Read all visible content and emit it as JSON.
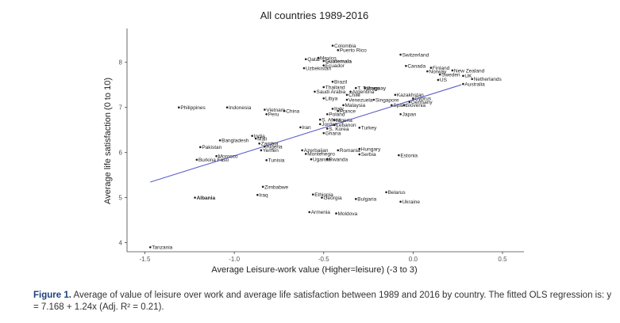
{
  "chart_data": {
    "type": "scatter",
    "title": "All countries 1989-2016",
    "xlabel": "Average Leisure-work value (Higher=leisure) (-3 to 3)",
    "ylabel": "Average life satisfaction (0 to 10)",
    "xlim": [
      -1.6,
      0.62
    ],
    "ylim": [
      3.8,
      8.75
    ],
    "xticks": [
      -1.5,
      -1.0,
      -0.5,
      0.0,
      0.5
    ],
    "xtick_labels": [
      "-1.5",
      "-1.0",
      "-0.5",
      "0.0",
      "0.5"
    ],
    "yticks": [
      4,
      5,
      6,
      7,
      8
    ],
    "ytick_labels": [
      "4",
      "5",
      "6",
      "7",
      "8"
    ],
    "grid": false,
    "legend": "none",
    "fit_line": {
      "x": [
        -1.47,
        0.27
      ],
      "intercept": 7.168,
      "slope": 1.24,
      "color": "#5b5fc7"
    },
    "point_color": "#222222",
    "points": [
      {
        "label": "Colombia",
        "x": -0.45,
        "y": 8.37
      },
      {
        "label": "Puerto Rico",
        "x": -0.42,
        "y": 8.27
      },
      {
        "label": "Switzerland",
        "x": -0.07,
        "y": 8.17
      },
      {
        "label": "Qatar",
        "x": -0.6,
        "y": 8.07
      },
      {
        "label": "Mexico",
        "x": -0.53,
        "y": 8.1
      },
      {
        "label": "Guatemala",
        "x": -0.5,
        "y": 8.03,
        "bold": true
      },
      {
        "label": "Ecuador",
        "x": -0.5,
        "y": 7.93
      },
      {
        "label": "Uzbekistan",
        "x": -0.61,
        "y": 7.87
      },
      {
        "label": "Canada",
        "x": -0.04,
        "y": 7.92
      },
      {
        "label": "Finland",
        "x": 0.1,
        "y": 7.88
      },
      {
        "label": "Norway",
        "x": 0.08,
        "y": 7.8
      },
      {
        "label": "New Zealand",
        "x": 0.22,
        "y": 7.82
      },
      {
        "label": "Sweden",
        "x": 0.15,
        "y": 7.73
      },
      {
        "label": "UK",
        "x": 0.28,
        "y": 7.7
      },
      {
        "label": "Netherlands",
        "x": 0.33,
        "y": 7.63
      },
      {
        "label": "US",
        "x": 0.14,
        "y": 7.61
      },
      {
        "label": "Australia",
        "x": 0.28,
        "y": 7.52
      },
      {
        "label": "Brazil",
        "x": -0.45,
        "y": 7.57
      },
      {
        "label": "Saudi Arabia",
        "x": -0.55,
        "y": 7.35
      },
      {
        "label": "Thailand",
        "x": -0.5,
        "y": 7.45
      },
      {
        "label": "T. Tobago",
        "x": -0.32,
        "y": 7.43
      },
      {
        "label": "Uruguay",
        "x": -0.27,
        "y": 7.43
      },
      {
        "label": "Argentina",
        "x": -0.35,
        "y": 7.35
      },
      {
        "label": "Chile",
        "x": -0.37,
        "y": 7.28
      },
      {
        "label": "Kazakhstan",
        "x": -0.1,
        "y": 7.28
      },
      {
        "label": "Libya",
        "x": -0.5,
        "y": 7.2
      },
      {
        "label": "Venezuela",
        "x": -0.37,
        "y": 7.17
      },
      {
        "label": "Singapore",
        "x": -0.22,
        "y": 7.17
      },
      {
        "label": "Cyprus",
        "x": 0.0,
        "y": 7.2
      },
      {
        "label": "Germany",
        "x": -0.02,
        "y": 7.12
      },
      {
        "label": "Malaysia",
        "x": -0.39,
        "y": 7.05
      },
      {
        "label": "Spain",
        "x": -0.12,
        "y": 7.05
      },
      {
        "label": "Slovenia",
        "x": -0.05,
        "y": 7.05
      },
      {
        "label": "Philippines",
        "x": -1.31,
        "y": 7.0
      },
      {
        "label": "Indonesia",
        "x": -1.04,
        "y": 7.0
      },
      {
        "label": "Vietnam",
        "x": -0.83,
        "y": 6.95
      },
      {
        "label": "China",
        "x": -0.72,
        "y": 6.92
      },
      {
        "label": "Italy",
        "x": -0.45,
        "y": 6.97
      },
      {
        "label": "France",
        "x": -0.42,
        "y": 6.92
      },
      {
        "label": "Peru",
        "x": -0.82,
        "y": 6.85
      },
      {
        "label": "Poland",
        "x": -0.48,
        "y": 6.85
      },
      {
        "label": "Japan",
        "x": -0.07,
        "y": 6.85
      },
      {
        "label": "S. Africa",
        "x": -0.52,
        "y": 6.73
      },
      {
        "label": "Nigeria",
        "x": -0.44,
        "y": 6.72
      },
      {
        "label": "Jordan",
        "x": -0.52,
        "y": 6.63
      },
      {
        "label": "Lebanon",
        "x": -0.44,
        "y": 6.61
      },
      {
        "label": "Iran",
        "x": -0.63,
        "y": 6.56
      },
      {
        "label": "S. Korea",
        "x": -0.48,
        "y": 6.53
      },
      {
        "label": "Turkey",
        "x": -0.3,
        "y": 6.55
      },
      {
        "label": "Ghana",
        "x": -0.5,
        "y": 6.43
      },
      {
        "label": "India",
        "x": -0.9,
        "y": 6.37
      },
      {
        "label": "Mali",
        "x": -0.88,
        "y": 6.31
      },
      {
        "label": "Bangladesh",
        "x": -1.08,
        "y": 6.27
      },
      {
        "label": "Zambia",
        "x": -0.86,
        "y": 6.2
      },
      {
        "label": "Pakistan",
        "x": -1.19,
        "y": 6.12
      },
      {
        "label": "Algeria",
        "x": -0.83,
        "y": 6.13
      },
      {
        "label": "Yemen",
        "x": -0.85,
        "y": 6.05
      },
      {
        "label": "Azerbaijan",
        "x": -0.62,
        "y": 6.05
      },
      {
        "label": "Romania",
        "x": -0.42,
        "y": 6.05
      },
      {
        "label": "Hungary",
        "x": -0.3,
        "y": 6.08
      },
      {
        "label": "Montenegro",
        "x": -0.6,
        "y": 5.97
      },
      {
        "label": "Serbia",
        "x": -0.3,
        "y": 5.96
      },
      {
        "label": "Morocco",
        "x": -1.1,
        "y": 5.92
      },
      {
        "label": "Estonia",
        "x": -0.08,
        "y": 5.94
      },
      {
        "label": "Burkina Faso",
        "x": -1.21,
        "y": 5.84
      },
      {
        "label": "Tunisia",
        "x": -0.82,
        "y": 5.83
      },
      {
        "label": "Uganda",
        "x": -0.57,
        "y": 5.85
      },
      {
        "label": "Rwanda",
        "x": -0.48,
        "y": 5.85
      },
      {
        "label": "Zimbabwe",
        "x": -0.84,
        "y": 5.24
      },
      {
        "label": "Belarus",
        "x": -0.15,
        "y": 5.12
      },
      {
        "label": "Iraq",
        "x": -0.87,
        "y": 5.06
      },
      {
        "label": "Ethiopia",
        "x": -0.56,
        "y": 5.07
      },
      {
        "label": "Georgia",
        "x": -0.51,
        "y": 5.0
      },
      {
        "label": "Bulgaria",
        "x": -0.32,
        "y": 4.97
      },
      {
        "label": "Albania",
        "x": -1.22,
        "y": 5.0,
        "bold": true
      },
      {
        "label": "Ukraine",
        "x": -0.07,
        "y": 4.91
      },
      {
        "label": "Armenia",
        "x": -0.58,
        "y": 4.68
      },
      {
        "label": "Moldova",
        "x": -0.43,
        "y": 4.65
      },
      {
        "label": "Tanzania",
        "x": -1.47,
        "y": 3.9
      }
    ]
  },
  "caption": {
    "figure_label": "Figure 1.",
    "text": "Average of value of leisure over work and average life satisfaction between 1989 and 2016 by country. The fitted OLS regression is: y = 7.168 + 1.24x (Adj. R² = 0.21)."
  }
}
